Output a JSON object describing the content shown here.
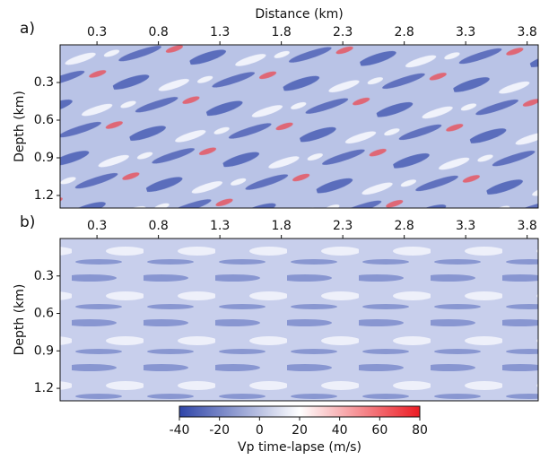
{
  "chart_data": [
    {
      "type": "heatmap",
      "panel_label": "a)",
      "xlabel": "Distance (km)",
      "ylabel": "Depth (km)",
      "xlim": [
        0,
        3.89
      ],
      "ylim": [
        0,
        1.3
      ],
      "xticks": [
        0.3,
        0.8,
        1.3,
        1.8,
        2.3,
        2.8,
        3.3,
        3.8
      ],
      "yticks": [
        0.3,
        0.6,
        0.9,
        1.2
      ]
    },
    {
      "type": "heatmap",
      "panel_label": "b)",
      "ylabel": "Depth (km)",
      "xlim": [
        0,
        3.89
      ],
      "ylim": [
        0,
        1.3
      ],
      "xticks": [
        0.3,
        0.8,
        1.3,
        1.8,
        2.3,
        2.8,
        3.3,
        3.8
      ],
      "yticks": [
        0.3,
        0.6,
        0.9,
        1.2
      ]
    },
    {
      "type": "colorbar",
      "label": "Vp time-lapse (m/s)",
      "xlim": [
        -40,
        80
      ],
      "xticks": [
        -40,
        -20,
        0,
        20,
        40,
        60,
        80
      ],
      "colors": [
        "#2f45a8",
        "#ffffff",
        "#ec1c24"
      ]
    }
  ]
}
